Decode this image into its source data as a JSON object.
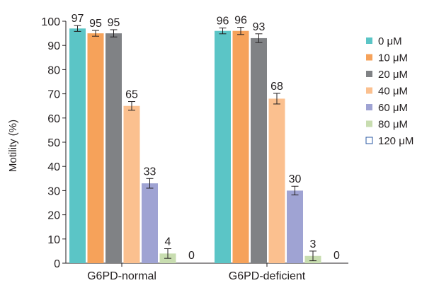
{
  "chart_data": {
    "type": "bar",
    "categories": [
      "G6PD-normal",
      "G6PD-deficient"
    ],
    "ylabel": "Motility (%)",
    "xlabel": "",
    "ylim": [
      0,
      100
    ],
    "yticks": [
      "0",
      "10",
      "20",
      "30",
      "40",
      "50",
      "60",
      "70",
      "80",
      "90",
      "100"
    ],
    "grid": false,
    "legend_position": "right",
    "series": [
      {
        "name": "0 μM",
        "color": "#5bc5c6",
        "values": [
          97,
          96
        ],
        "errors": [
          1.2,
          1.2
        ],
        "labels": [
          "97",
          "96"
        ]
      },
      {
        "name": "10 μM",
        "color": "#f6a25a",
        "values": [
          95,
          96
        ],
        "errors": [
          1.2,
          1.5
        ],
        "labels": [
          "95",
          "96"
        ]
      },
      {
        "name": "20 μM",
        "color": "#808285",
        "values": [
          95,
          93
        ],
        "errors": [
          1.5,
          1.8
        ],
        "labels": [
          "95",
          "93"
        ]
      },
      {
        "name": "40 μM",
        "color": "#fbc08f",
        "values": [
          65,
          68
        ],
        "errors": [
          1.8,
          2.2
        ],
        "labels": [
          "65",
          "68"
        ]
      },
      {
        "name": "60 μM",
        "color": "#9fa3d3",
        "values": [
          33,
          30
        ],
        "errors": [
          2.0,
          1.8
        ],
        "labels": [
          "33",
          "30"
        ]
      },
      {
        "name": "80 μM",
        "color": "#c8ddb0",
        "values": [
          4,
          3
        ],
        "errors": [
          2.0,
          2.0
        ],
        "labels": [
          "4",
          "3"
        ]
      },
      {
        "name": "120 μM",
        "color": "#ffffff",
        "outline": "#2b5aa3",
        "values": [
          0,
          0
        ],
        "errors": [
          0,
          0
        ],
        "labels": [
          "0",
          "0"
        ]
      }
    ]
  }
}
